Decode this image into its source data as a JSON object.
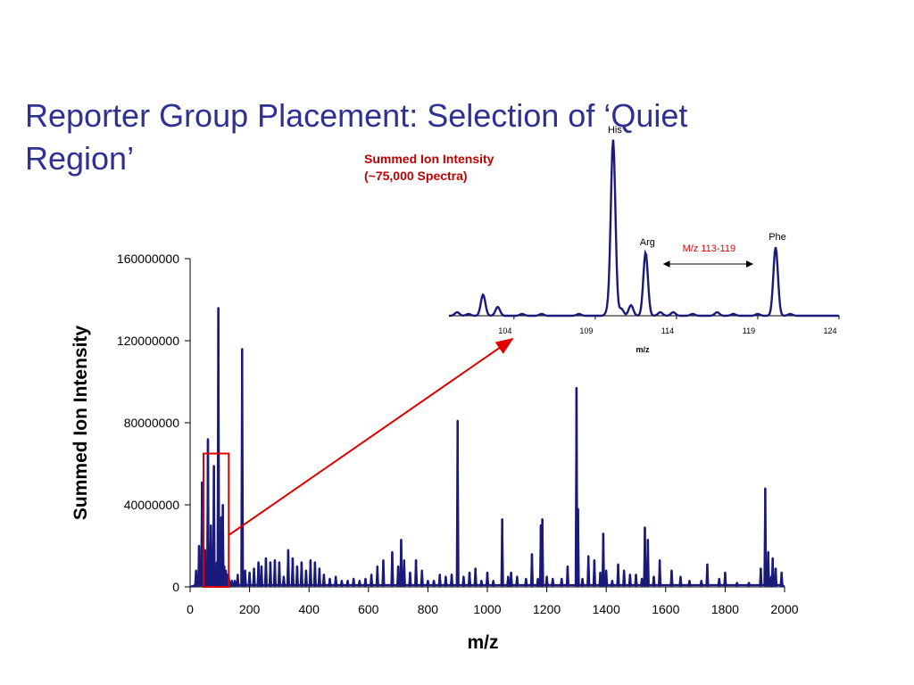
{
  "slide": {
    "title": "Reporter Group Placement: Selection of ‘Quiet Region’",
    "annotation_line1": "Summed Ion Intensity",
    "annotation_line2": "(~75,000 Spectra)"
  },
  "colors": {
    "title": "#2e3192",
    "series": "#1a1a7a",
    "annotation": "#c00000",
    "highlight": "#e00000"
  },
  "chart_data": [
    {
      "type": "line",
      "title": "",
      "xlabel": "m/z",
      "ylabel": "Summed Ion Intensity",
      "xlim": [
        0,
        2000
      ],
      "ylim": [
        0,
        160000000
      ],
      "xticks": [
        0,
        200,
        400,
        600,
        800,
        1000,
        1200,
        1400,
        1600,
        1800,
        2000
      ],
      "yticks": [
        0,
        40000000,
        80000000,
        120000000,
        160000000
      ],
      "xtick_labels": [
        "0",
        "200",
        "400",
        "600",
        "800",
        "1000",
        "1200",
        "1400",
        "1600",
        "1800",
        "2000"
      ],
      "ytick_labels": [
        "0",
        "40000000",
        "80000000",
        "120000000",
        "160000000"
      ],
      "grid": false,
      "highlight_region": {
        "x": [
          45,
          130
        ],
        "y": [
          0,
          65000000
        ]
      },
      "series": [
        {
          "x": [
            20,
            30,
            40,
            45,
            50,
            60,
            70,
            75,
            80,
            90,
            95,
            105,
            110,
            115,
            120,
            125,
            130,
            140,
            150,
            160,
            175,
            185,
            200,
            215,
            230,
            240,
            255,
            270,
            285,
            300,
            315,
            330,
            345,
            360,
            375,
            390,
            405,
            420,
            435,
            450,
            470,
            490,
            510,
            530,
            550,
            570,
            590,
            610,
            630,
            650,
            680,
            700,
            710,
            720,
            740,
            760,
            780,
            800,
            820,
            840,
            860,
            880,
            900,
            920,
            940,
            960,
            980,
            1000,
            1020,
            1050,
            1070,
            1080,
            1100,
            1130,
            1150,
            1170,
            1180,
            1185,
            1200,
            1220,
            1250,
            1270,
            1300,
            1305,
            1320,
            1340,
            1360,
            1380,
            1390,
            1400,
            1420,
            1440,
            1460,
            1480,
            1500,
            1520,
            1530,
            1540,
            1560,
            1580,
            1620,
            1650,
            1680,
            1720,
            1740,
            1780,
            1800,
            1840,
            1880,
            1920,
            1935,
            1945,
            1955,
            1960,
            1970,
            1990
          ],
          "y": [
            8000000,
            20000000,
            51000000,
            12000000,
            18000000,
            72000000,
            30000000,
            10000000,
            59000000,
            12000000,
            136000000,
            34000000,
            40000000,
            10000000,
            8000000,
            6000000,
            5000000,
            3000000,
            3000000,
            6000000,
            116000000,
            8000000,
            7000000,
            9000000,
            12000000,
            10000000,
            14000000,
            12000000,
            13000000,
            12000000,
            5000000,
            18000000,
            14000000,
            10000000,
            12000000,
            8000000,
            13000000,
            12000000,
            9000000,
            6000000,
            4000000,
            5000000,
            3000000,
            3000000,
            4000000,
            3000000,
            4000000,
            6000000,
            10000000,
            13000000,
            17000000,
            10000000,
            23000000,
            13000000,
            7000000,
            13000000,
            8000000,
            3000000,
            3000000,
            6000000,
            5000000,
            6000000,
            81000000,
            5000000,
            7000000,
            9000000,
            3000000,
            7000000,
            3000000,
            33000000,
            5000000,
            7000000,
            5000000,
            4000000,
            16000000,
            4000000,
            30000000,
            33000000,
            5000000,
            4000000,
            4000000,
            10000000,
            97000000,
            38000000,
            4000000,
            15000000,
            13000000,
            7000000,
            26000000,
            8000000,
            3000000,
            11000000,
            8000000,
            6000000,
            6000000,
            4000000,
            29000000,
            23000000,
            5000000,
            13000000,
            8000000,
            5000000,
            3000000,
            3000000,
            11000000,
            4000000,
            7000000,
            2000000,
            2000000,
            9000000,
            48000000,
            17000000,
            5000000,
            14000000,
            9000000,
            7000000
          ]
        }
      ]
    },
    {
      "type": "line",
      "title": "",
      "xlabel": "m/z",
      "ylabel": "",
      "xlim": [
        100,
        124
      ],
      "xticks": [
        104,
        109,
        114,
        119,
        124
      ],
      "xtick_labels": [
        "104",
        "109",
        "114",
        "119",
        "124"
      ],
      "grid": false,
      "series": [
        {
          "x": [
            100.5,
            101.2,
            102.1,
            103.0,
            104.5,
            105.7,
            108.0,
            109.8,
            110.1,
            110.6,
            111.2,
            112.1,
            113.0,
            113.8,
            115.0,
            116.5,
            117.5,
            119.0,
            120.1,
            121.0
          ],
          "y": [
            2,
            1,
            12,
            5,
            1,
            1,
            1,
            3,
            100,
            4,
            6,
            36,
            2,
            2,
            1,
            2,
            1,
            1,
            39,
            1
          ]
        }
      ],
      "annotations": [
        {
          "x": 110.1,
          "text": "His"
        },
        {
          "x": 112.1,
          "text": "Arg"
        },
        {
          "x": 120.1,
          "text": "Phe"
        }
      ],
      "range_label": "M/z 113-119",
      "range": [
        113,
        119
      ],
      "inset_label": "m/z"
    }
  ]
}
